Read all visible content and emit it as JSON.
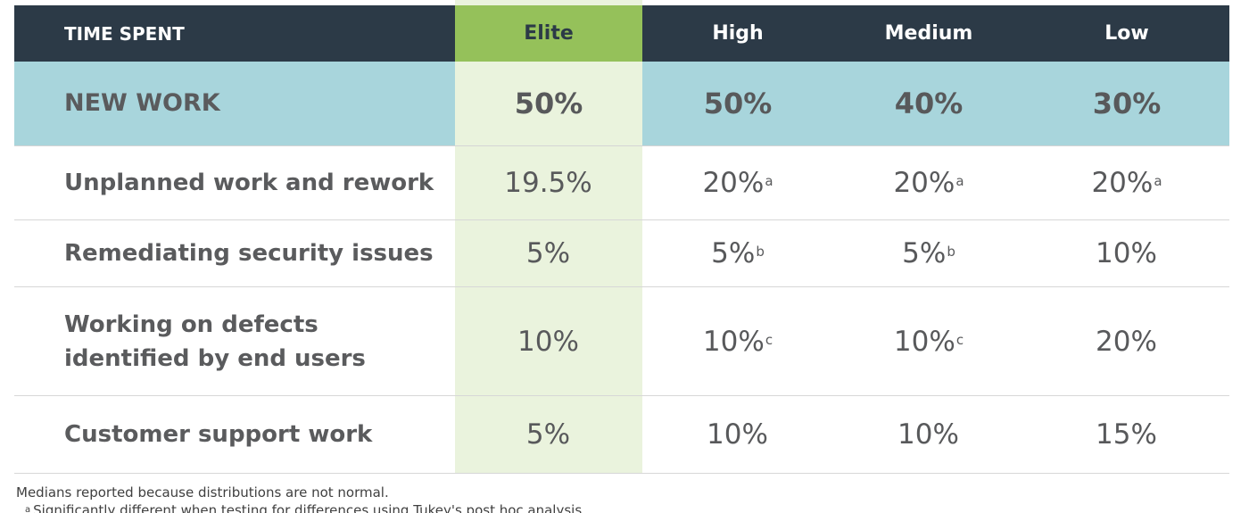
{
  "table": {
    "header": {
      "label": "TIME SPENT",
      "columns": [
        "Elite",
        "High",
        "Medium",
        "Low"
      ]
    },
    "new_work": {
      "label": "NEW WORK",
      "values": [
        "50%",
        "50%",
        "40%",
        "30%"
      ]
    },
    "rows": [
      {
        "label": "Unplanned work and rework",
        "values": [
          {
            "v": "19.5%",
            "sup": ""
          },
          {
            "v": "20%",
            "sup": "a"
          },
          {
            "v": "20%",
            "sup": "a"
          },
          {
            "v": "20%",
            "sup": "a"
          }
        ]
      },
      {
        "label": "Remediating security issues",
        "values": [
          {
            "v": "5%",
            "sup": ""
          },
          {
            "v": "5%",
            "sup": "b"
          },
          {
            "v": "5%",
            "sup": "b"
          },
          {
            "v": "10%",
            "sup": ""
          }
        ]
      },
      {
        "label_line1": "Working on defects",
        "label_line2": "identified by end users",
        "values": [
          {
            "v": "10%",
            "sup": ""
          },
          {
            "v": "10%",
            "sup": "c"
          },
          {
            "v": "10%",
            "sup": "c"
          },
          {
            "v": "20%",
            "sup": ""
          }
        ]
      },
      {
        "label": "Customer support work",
        "values": [
          {
            "v": "5%",
            "sup": ""
          },
          {
            "v": "10%",
            "sup": ""
          },
          {
            "v": "10%",
            "sup": ""
          },
          {
            "v": "15%",
            "sup": ""
          }
        ]
      }
    ]
  },
  "notes": {
    "line1": "Medians reported because distributions are not normal.",
    "footnote_a_mark": "a",
    "footnote_a_text": "Significantly different when testing for differences using Tukey's post hoc analysis."
  },
  "colors": {
    "header_bg": "#2c3a47",
    "elite_header_bg": "#95c15a",
    "elite_column_bg": "#eaf3dd",
    "new_work_bg": "#a8d5dc"
  }
}
